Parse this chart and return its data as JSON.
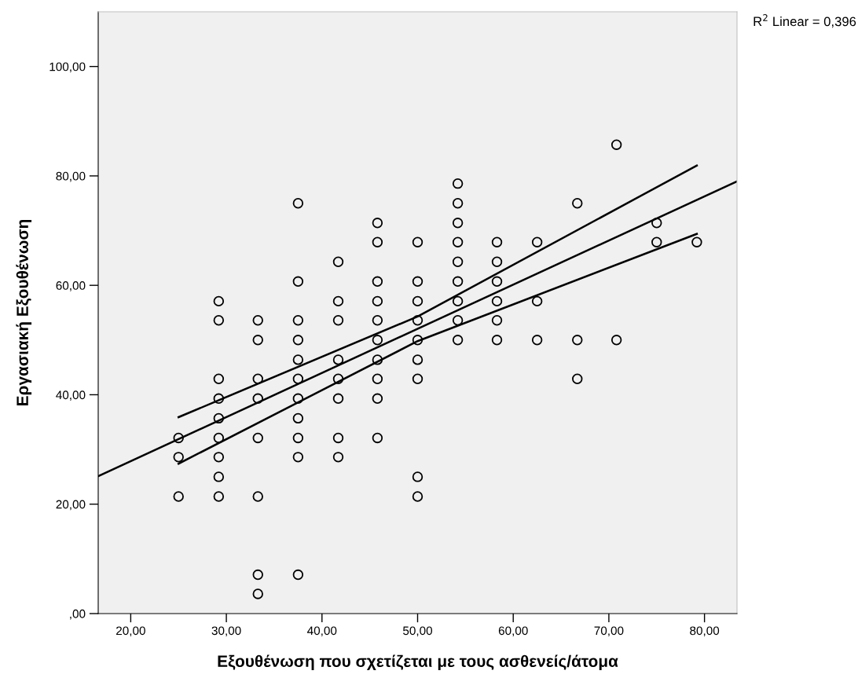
{
  "chart_data": {
    "type": "scatter",
    "xlabel": "Εξουθένωση που σχετίζεται με τους ασθενείς/άτομα",
    "ylabel": "Εργασιακή Εξουθένωση",
    "annotations": [
      "R$^{2}$ Linear = 0,396"
    ],
    "xlim": [
      16.6,
      83.4
    ],
    "ylim": [
      0,
      110
    ],
    "xticks": [
      {
        "value": 20,
        "label": "20,00"
      },
      {
        "value": 30,
        "label": "30,00"
      },
      {
        "value": 40,
        "label": "40,00"
      },
      {
        "value": 50,
        "label": "50,00"
      },
      {
        "value": 60,
        "label": "60,00"
      },
      {
        "value": 70,
        "label": "70,00"
      },
      {
        "value": 80,
        "label": "80,00"
      }
    ],
    "yticks": [
      {
        "value": 0,
        "label": ",00"
      },
      {
        "value": 20,
        "label": "20,00"
      },
      {
        "value": 40,
        "label": "40,00"
      },
      {
        "value": 60,
        "label": "60,00"
      },
      {
        "value": 80,
        "label": "80,00"
      },
      {
        "value": 100,
        "label": "100,00"
      }
    ],
    "grid": false,
    "series": [
      {
        "color": "#000000",
        "marker": "circle",
        "x": [
          25,
          25,
          25,
          29.2,
          29.2,
          29.2,
          29.2,
          29.2,
          29.2,
          29.2,
          29.2,
          29.2,
          33.3,
          33.3,
          33.3,
          33.3,
          33.3,
          33.3,
          33.3,
          33.3,
          37.5,
          37.5,
          37.5,
          37.5,
          37.5,
          37.5,
          37.5,
          37.5,
          37.5,
          37.5,
          37.5,
          41.7,
          41.7,
          41.7,
          41.7,
          41.7,
          41.7,
          41.7,
          41.7,
          45.8,
          45.8,
          45.8,
          45.8,
          45.8,
          45.8,
          45.8,
          45.8,
          45.8,
          45.8,
          50,
          50,
          50,
          50,
          50,
          50,
          50,
          50,
          50,
          54.2,
          54.2,
          54.2,
          54.2,
          54.2,
          54.2,
          54.2,
          54.2,
          54.2,
          58.3,
          58.3,
          58.3,
          58.3,
          58.3,
          58.3,
          62.5,
          62.5,
          62.5,
          66.7,
          66.7,
          66.7,
          70.8,
          70.8,
          75,
          75,
          79.2
        ],
        "values": [
          32.1,
          28.6,
          21.4,
          57.1,
          53.6,
          42.9,
          39.3,
          35.7,
          32.1,
          28.6,
          25,
          21.4,
          53.6,
          50,
          42.9,
          39.3,
          32.1,
          21.4,
          7.1,
          3.6,
          75,
          60.7,
          53.6,
          50,
          46.4,
          42.9,
          39.3,
          35.7,
          32.1,
          28.6,
          7.1,
          64.3,
          57.1,
          53.6,
          46.4,
          42.9,
          39.3,
          32.1,
          28.6,
          71.4,
          67.9,
          60.7,
          57.1,
          53.6,
          50,
          46.4,
          42.9,
          39.3,
          32.1,
          67.9,
          60.7,
          57.1,
          53.6,
          50,
          46.4,
          42.9,
          25,
          21.4,
          78.6,
          75,
          71.4,
          67.9,
          64.3,
          60.7,
          57.1,
          53.6,
          50,
          67.9,
          64.3,
          60.7,
          57.1,
          53.6,
          50,
          67.9,
          57.1,
          50,
          75,
          50,
          42.9,
          85.7,
          50,
          71.4,
          67.9,
          67.9
        ]
      },
      {
        "type": "line",
        "color": "#000000",
        "marker": "none",
        "x": [
          16.6,
          83.4
        ],
        "values": [
          25.1,
          79.0
        ]
      },
      {
        "type": "line",
        "color": "#000000",
        "marker": "none",
        "x": [
          25,
          50,
          79.2
        ],
        "values": [
          35.9,
          54.3,
          81.9
        ]
      },
      {
        "type": "line",
        "color": "#000000",
        "marker": "none",
        "x": [
          25,
          50,
          79.2
        ],
        "values": [
          27.4,
          49.8,
          69.4
        ]
      }
    ]
  }
}
